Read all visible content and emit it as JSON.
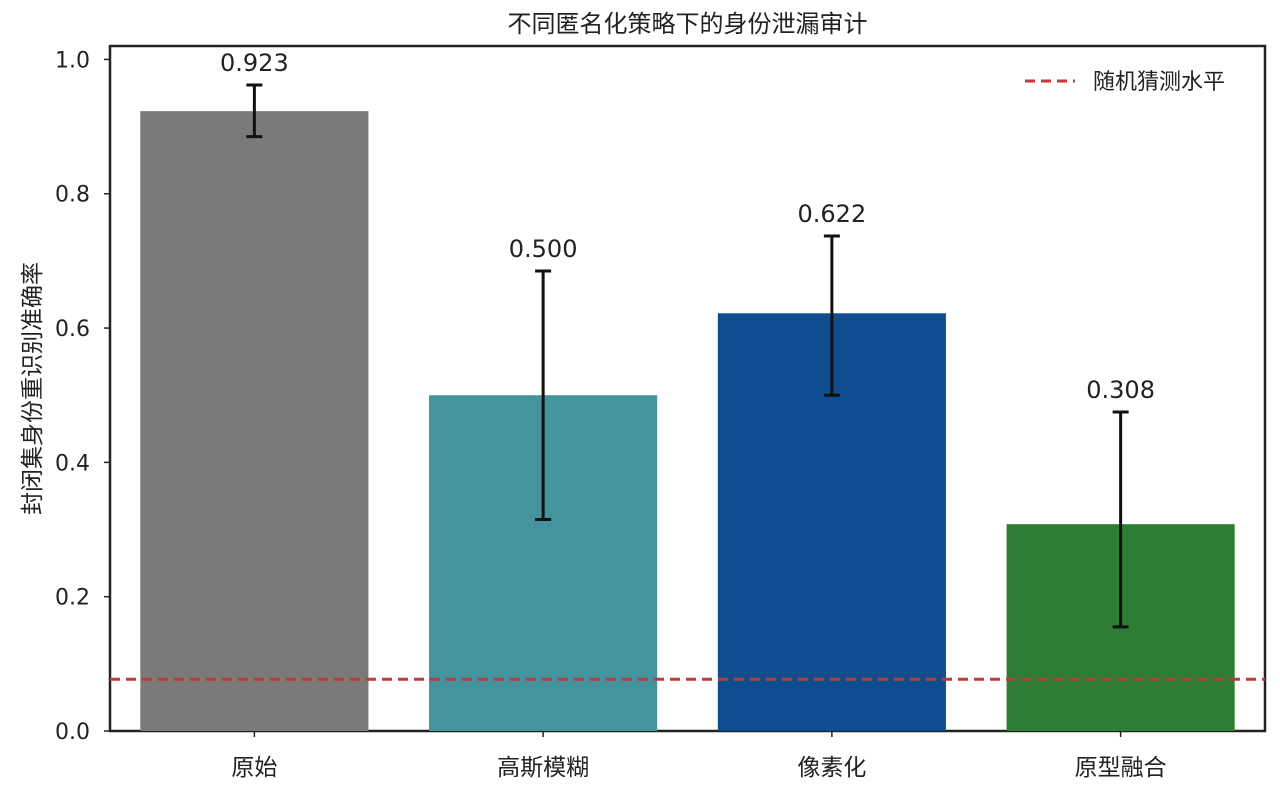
{
  "chart_data": {
    "type": "bar",
    "title": "不同匿名化策略下的身份泄漏审计",
    "xlabel": "",
    "ylabel": "封闭集身份重识别准确率",
    "categories": [
      "原始",
      "高斯模糊",
      "像素化",
      "原型融合"
    ],
    "values": [
      0.923,
      0.5,
      0.622,
      0.308
    ],
    "value_labels": [
      "0.923",
      "0.500",
      "0.622",
      "0.308"
    ],
    "error_low": [
      0.885,
      0.315,
      0.5,
      0.155
    ],
    "error_high": [
      0.962,
      0.685,
      0.737,
      0.475
    ],
    "bar_colors": [
      "#7a7a7a",
      "#43949c",
      "#0f4d91",
      "#2f7d35"
    ],
    "ylim": [
      0,
      1.02
    ],
    "yticks": [
      0.0,
      0.2,
      0.4,
      0.6,
      0.8,
      1.0
    ],
    "ytick_labels": [
      "0.0",
      "0.2",
      "0.4",
      "0.6",
      "0.8",
      "1.0"
    ],
    "reference_line": {
      "label": "随机猜测水平",
      "value": 0.077,
      "color": "#c0393b",
      "style": "dashed"
    },
    "legend": {
      "position": "top-right",
      "entries": [
        "随机猜测水平"
      ]
    },
    "grid": false
  }
}
